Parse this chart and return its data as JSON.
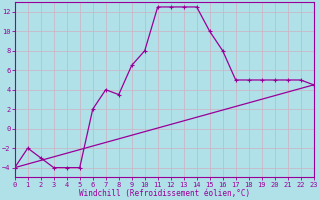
{
  "xlabel": "Windchill (Refroidissement éolien,°C)",
  "bg_color": "#b0e0e8",
  "grid_color": "#d0d0d0",
  "line_color": "#990099",
  "xlim": [
    0,
    23
  ],
  "ylim": [
    -5,
    13
  ],
  "xticks": [
    0,
    1,
    2,
    3,
    4,
    5,
    6,
    7,
    8,
    9,
    10,
    11,
    12,
    13,
    14,
    15,
    16,
    17,
    18,
    19,
    20,
    21,
    22,
    23
  ],
  "yticks": [
    -4,
    -2,
    0,
    2,
    4,
    6,
    8,
    10,
    12
  ],
  "curve1_x": [
    0,
    1,
    2,
    3,
    4,
    5,
    6,
    7,
    8,
    9,
    10,
    11,
    12,
    13,
    14,
    15,
    16,
    17,
    18,
    19,
    20,
    21,
    22,
    23
  ],
  "curve1_y": [
    -4,
    -2,
    -3,
    -4,
    -4,
    -4,
    2,
    4,
    3.5,
    6.5,
    8,
    12.5,
    12.5,
    12.5,
    12.5,
    10,
    8,
    5,
    5,
    5,
    5,
    5,
    5,
    4.5
  ],
  "curve2_x": [
    0,
    23
  ],
  "curve2_y": [
    -4,
    4.5
  ],
  "marker": "+"
}
